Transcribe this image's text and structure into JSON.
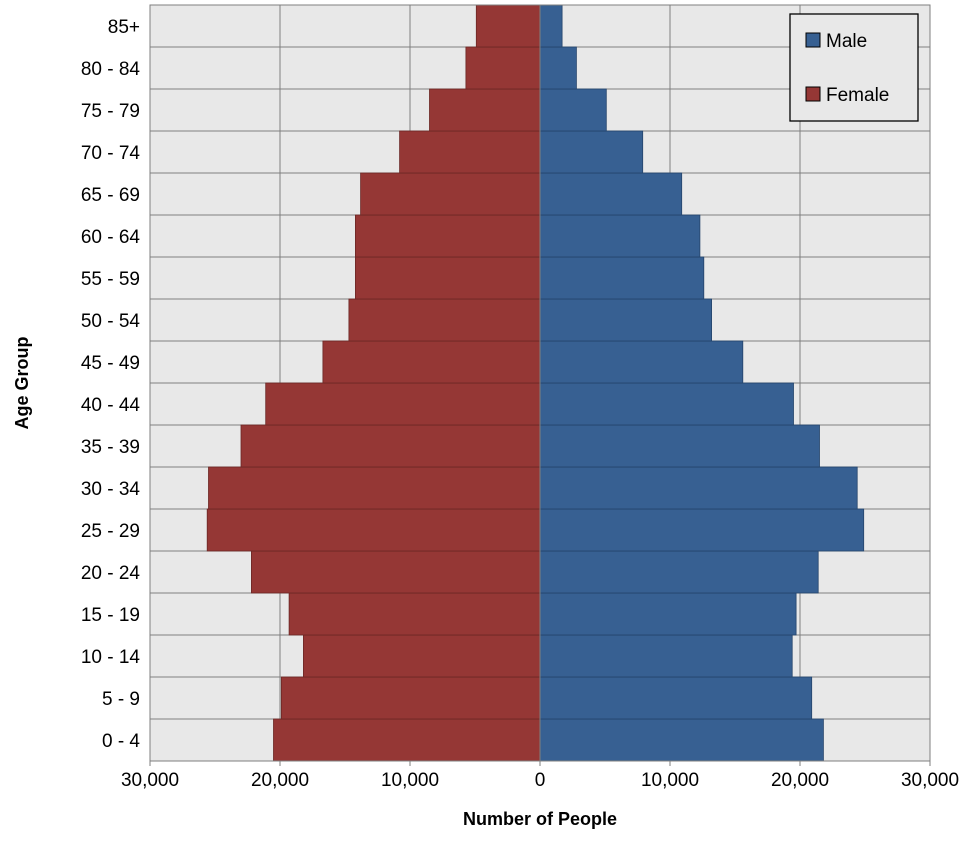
{
  "chart_data": {
    "type": "bar",
    "orientation": "horizontal",
    "xlabel": "Number of People",
    "ylabel": "Age Group",
    "xlim": [
      -30000,
      30000
    ],
    "x_ticks": [
      -30000,
      -20000,
      -10000,
      0,
      10000,
      20000,
      30000
    ],
    "x_tick_labels": [
      "30,000",
      "20,000",
      "10,000",
      "0",
      "10,000",
      "20,000",
      "30,000"
    ],
    "grid": true,
    "legend_position": "top-right",
    "categories": [
      "0 - 4",
      "5 - 9",
      "10 - 14",
      "15 - 19",
      "20 - 24",
      "25 - 29",
      "30 - 34",
      "35 - 39",
      "40 - 44",
      "45 - 49",
      "50 - 54",
      "55 - 59",
      "60 - 64",
      "65 - 69",
      "70 - 74",
      "75 - 79",
      "80 - 84",
      "85+"
    ],
    "series": [
      {
        "name": "Male",
        "color": "#376092",
        "values": [
          21800,
          20900,
          19400,
          19700,
          21400,
          24900,
          24400,
          21500,
          19500,
          15600,
          13200,
          12600,
          12300,
          10900,
          7900,
          5100,
          2800,
          1700
        ]
      },
      {
        "name": "Female",
        "color": "#953735",
        "values": [
          20500,
          19900,
          18200,
          19300,
          22200,
          25600,
          25500,
          23000,
          21100,
          16700,
          14700,
          14200,
          14200,
          13800,
          10800,
          8500,
          5700,
          4900
        ]
      }
    ]
  }
}
